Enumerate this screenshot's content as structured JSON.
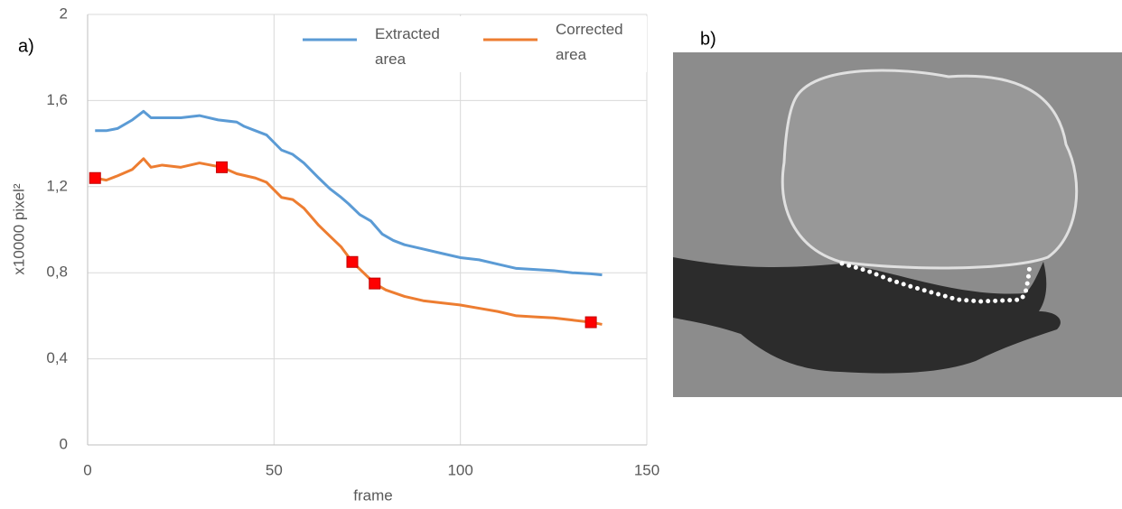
{
  "chart_data": {
    "type": "line",
    "panel_labels": [
      "a)",
      "b)"
    ],
    "xlabel": "frame",
    "ylabel": "x10000 pixel²",
    "xlim": [
      0,
      150
    ],
    "xticks": [
      0,
      50,
      100,
      150
    ],
    "ylim": [
      0,
      2
    ],
    "yticks": [
      0,
      {
        "value": 0.4,
        "label": "0,4"
      },
      {
        "value": 0.8,
        "label": "0,8"
      },
      {
        "value": 1.2,
        "label": "1,2"
      },
      {
        "value": 1.6,
        "label": "1,6"
      },
      2
    ],
    "grid": true,
    "series": [
      {
        "name": "Extracted area",
        "color": "#5b9bd5",
        "x": [
          2,
          5,
          8,
          12,
          15,
          17,
          20,
          25,
          30,
          35,
          40,
          42,
          45,
          48,
          52,
          55,
          58,
          62,
          65,
          68,
          70,
          73,
          76,
          79,
          82,
          85,
          90,
          95,
          100,
          105,
          110,
          115,
          120,
          125,
          130,
          135,
          138
        ],
        "values": [
          1.46,
          1.46,
          1.47,
          1.51,
          1.55,
          1.52,
          1.52,
          1.52,
          1.53,
          1.51,
          1.5,
          1.48,
          1.46,
          1.44,
          1.37,
          1.35,
          1.31,
          1.24,
          1.19,
          1.15,
          1.12,
          1.07,
          1.04,
          0.98,
          0.95,
          0.93,
          0.91,
          0.89,
          0.87,
          0.86,
          0.84,
          0.82,
          0.815,
          0.81,
          0.8,
          0.795,
          0.79
        ]
      },
      {
        "name": "Corrected area",
        "color": "#ed7d31",
        "x": [
          2,
          5,
          8,
          12,
          15,
          17,
          20,
          25,
          30,
          36,
          40,
          45,
          48,
          52,
          55,
          58,
          62,
          65,
          68,
          71,
          74,
          77,
          80,
          85,
          90,
          95,
          100,
          105,
          110,
          115,
          120,
          125,
          130,
          135,
          138
        ],
        "values": [
          1.24,
          1.23,
          1.25,
          1.28,
          1.33,
          1.29,
          1.3,
          1.29,
          1.31,
          1.29,
          1.26,
          1.24,
          1.22,
          1.15,
          1.14,
          1.1,
          1.02,
          0.97,
          0.92,
          0.85,
          0.8,
          0.75,
          0.72,
          0.69,
          0.67,
          0.66,
          0.65,
          0.635,
          0.62,
          0.6,
          0.595,
          0.59,
          0.58,
          0.57,
          0.56
        ]
      }
    ],
    "highlighted_points": {
      "color": "#ff0000",
      "x": [
        2,
        36,
        71,
        77,
        135
      ],
      "values": [
        1.24,
        1.29,
        0.85,
        0.75,
        0.57
      ]
    }
  }
}
